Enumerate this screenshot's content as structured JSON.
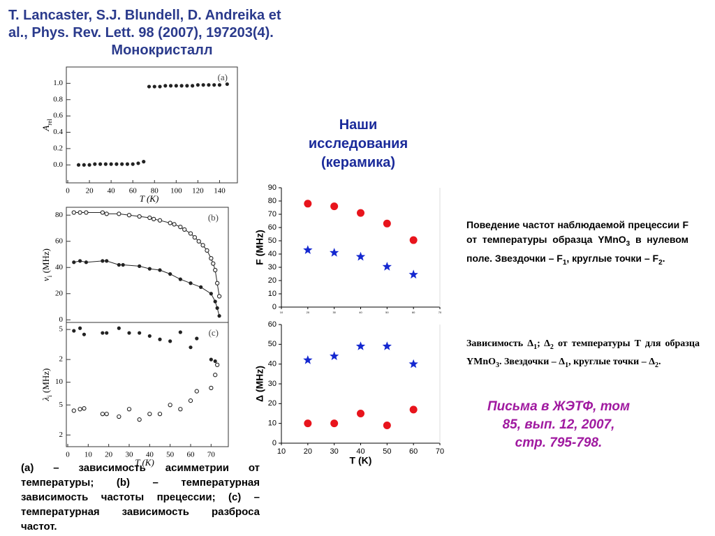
{
  "header": {
    "lines": [
      "T. Lancaster, S.J. Blundell, D. Andreika et",
      "al., Phys. Rev. Lett. 98 (2007), 197203(4)."
    ],
    "subtitle": "Монокристалл"
  },
  "ours_title": [
    "Наши",
    "исследования",
    "(керамика)"
  ],
  "caption_left": "(a) – зависимость асимметрии от температуры; (b) – температурная зависимость частоты прецессии; (c) – температурная зависимость разброса частот.",
  "text_f": [
    "Поведение частот наблюдаемой прецессии F от температуры образца YMnO",
    "3",
    " в нулевом поле. Звездочки – F",
    "1",
    ", круглые точки – F",
    "2",
    "."
  ],
  "text_delta": [
    "Зависимость Δ",
    "1",
    "; Δ",
    "2",
    " от температуры T для образца YMnO",
    "3",
    ". Звездочки – Δ",
    "1",
    ", круглые точки – Δ",
    "2",
    "."
  ],
  "reference": [
    "Письма в ЖЭТФ, том",
    "85, вып. 12, 2007,",
    "стр. 795-798."
  ],
  "chart_data": [
    {
      "type": "scatter",
      "panel_label": "(a)",
      "y_label": [
        "A",
        "rel"
      ],
      "x_label": "T (K)",
      "xlim": [
        0,
        150
      ],
      "xticks": [
        0,
        20,
        40,
        60,
        80,
        100,
        120,
        140
      ],
      "ylim": [
        -0.22,
        1.2
      ],
      "yticks": [
        {
          "value": 0,
          "label": "0.0"
        },
        {
          "value": 0.2,
          "label": "0.2"
        },
        {
          "value": 0.4,
          "label": "0.4"
        },
        {
          "value": 0.6,
          "label": "0.6"
        },
        {
          "value": 0.8,
          "label": "0.8"
        },
        {
          "value": 1,
          "label": "1.0"
        }
      ],
      "series": [
        {
          "marker": "circle-filled",
          "color": "#222222",
          "x": [
            10,
            15,
            20,
            25,
            30,
            35,
            40,
            45,
            50,
            55,
            60,
            65,
            70
          ],
          "values": [
            0,
            0,
            0,
            0.01,
            0.01,
            0.01,
            0.01,
            0.01,
            0.01,
            0.01,
            0.01,
            0.02,
            0.04
          ]
        },
        {
          "marker": "circle-filled",
          "color": "#222222",
          "x": [
            75,
            80,
            85,
            90,
            95,
            100,
            105,
            110,
            115,
            120,
            125,
            130,
            135,
            140,
            147
          ],
          "values": [
            0.96,
            0.96,
            0.96,
            0.97,
            0.97,
            0.97,
            0.97,
            0.97,
            0.97,
            0.98,
            0.98,
            0.98,
            0.98,
            0.98,
            0.99
          ]
        }
      ]
    },
    {
      "type": "scatter",
      "panel_label": "(b)",
      "y_label": [
        "ν",
        "i",
        " (MHz)"
      ],
      "xlim": [
        0,
        75
      ],
      "ylim": [
        -2,
        86
      ],
      "yticks": [
        0,
        20,
        40,
        60,
        80
      ],
      "series": [
        {
          "marker": "circle-open",
          "line": true,
          "color": "#222222",
          "x": [
            3,
            6,
            9,
            17,
            19,
            25,
            30,
            35,
            40,
            42,
            45,
            50,
            52,
            55,
            57,
            60,
            62,
            64,
            66,
            68,
            70,
            71,
            72,
            73,
            74
          ],
          "values": [
            82,
            82,
            82,
            82,
            81,
            81,
            80,
            79,
            78,
            77,
            76,
            74,
            73,
            71,
            69,
            66,
            63,
            60,
            57,
            53,
            47,
            43,
            38,
            28,
            18
          ]
        },
        {
          "marker": "circle-filled",
          "line": true,
          "color": "#222222",
          "x": [
            3,
            6,
            9,
            17,
            19,
            25,
            27,
            35,
            40,
            45,
            50,
            55,
            60,
            65,
            70,
            72,
            73,
            74
          ],
          "values": [
            44,
            45,
            44,
            45,
            45,
            42,
            42,
            41,
            39,
            38,
            35,
            31,
            28,
            25,
            20,
            14,
            9,
            3
          ]
        }
      ]
    },
    {
      "type": "scatter",
      "panel_label": "(c)",
      "y_label": [
        "λ",
        "i",
        " (MHz)"
      ],
      "x_label": "T (K)",
      "log_y": true,
      "xlim": [
        0,
        75
      ],
      "xticks": [
        0,
        10,
        20,
        30,
        40,
        50,
        60,
        70
      ],
      "ylim": [
        1.4,
        62
      ],
      "yticks": [
        2,
        5,
        10,
        {
          "value": 20,
          "label": "2"
        },
        {
          "value": 50,
          "label": "5"
        }
      ],
      "series": [
        {
          "marker": "circle-filled",
          "color": "#222222",
          "x": [
            3,
            6,
            8,
            17,
            19,
            25,
            30,
            35,
            40,
            45,
            50,
            55,
            60,
            63,
            70,
            72,
            73
          ],
          "values": [
            48,
            52,
            43,
            45,
            45,
            52,
            45,
            45,
            41,
            37,
            35,
            46,
            29,
            38,
            20,
            19,
            17
          ]
        },
        {
          "marker": "circle-open",
          "color": "#222222",
          "x": [
            3,
            6,
            8,
            17,
            19,
            25,
            30,
            35,
            40,
            45,
            50,
            55,
            60,
            63,
            70,
            72,
            73
          ],
          "values": [
            4.2,
            4.4,
            4.5,
            3.8,
            3.8,
            3.5,
            4.4,
            3.2,
            3.8,
            3.8,
            5,
            4.4,
            5.7,
            7.6,
            8.4,
            12.5,
            17
          ]
        }
      ]
    },
    {
      "type": "scatter",
      "y_label": "F (MHz)",
      "xlim": [
        10,
        70
      ],
      "xticks": [
        10,
        20,
        30,
        40,
        50,
        60,
        70
      ],
      "ylim": [
        0,
        90
      ],
      "yticks": [
        0,
        10,
        20,
        30,
        40,
        50,
        60,
        70,
        80,
        90
      ],
      "series": [
        {
          "marker": "circle-filled",
          "color": "#e8141c",
          "x": [
            20,
            30,
            40,
            50,
            60
          ],
          "values": [
            78,
            76,
            71,
            63,
            50.5
          ]
        },
        {
          "marker": "star",
          "color": "#1428d0",
          "x": [
            20,
            30,
            40,
            50,
            60
          ],
          "values": [
            43,
            41,
            38,
            30.5,
            24.5
          ]
        }
      ]
    },
    {
      "type": "scatter",
      "y_label": "Δ (MHz)",
      "x_label": "T (K)",
      "xlim": [
        10,
        70
      ],
      "xticks": [
        10,
        20,
        30,
        40,
        50,
        60,
        70
      ],
      "ylim": [
        0,
        60
      ],
      "yticks": [
        0,
        10,
        20,
        30,
        40,
        50,
        60
      ],
      "series": [
        {
          "marker": "star",
          "color": "#1428d0",
          "x": [
            20,
            30,
            40,
            50,
            60
          ],
          "values": [
            42,
            44,
            49,
            49,
            40
          ]
        },
        {
          "marker": "circle-filled",
          "color": "#e8141c",
          "x": [
            20,
            30,
            40,
            50,
            60
          ],
          "values": [
            10,
            10,
            15,
            9,
            17
          ]
        }
      ]
    }
  ]
}
